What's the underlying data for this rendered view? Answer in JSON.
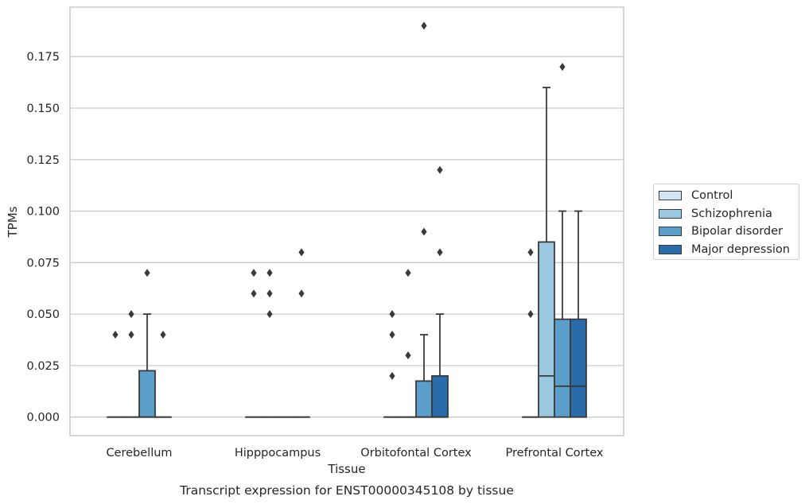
{
  "chart_data": {
    "type": "box",
    "title": "Transcript expression for ENST00000345108 by tissue",
    "xlabel": "Tissue",
    "ylabel": "TPMs",
    "ylim": [
      -0.009,
      0.199
    ],
    "yticks": [
      0.0,
      0.025,
      0.05,
      0.075,
      0.1,
      0.125,
      0.15,
      0.175
    ],
    "ytick_labels": [
      "0.000",
      "0.025",
      "0.050",
      "0.075",
      "0.100",
      "0.125",
      "0.150",
      "0.175"
    ],
    "grid": true,
    "legend_position": "right",
    "categories": [
      "Cerebellum",
      "Hipppocampus",
      "Orbitofontal Cortex",
      "Prefrontal Cortex"
    ],
    "series": [
      {
        "name": "Control",
        "color": "#d3e4f3",
        "boxes": [
          {
            "q1": 0,
            "median": 0,
            "q3": 0,
            "whislo": 0,
            "whishi": 0,
            "fliers": [
              0.04
            ]
          },
          {
            "q1": 0,
            "median": 0,
            "q3": 0,
            "whislo": 0,
            "whishi": 0,
            "fliers": [
              0.06,
              0.07
            ]
          },
          {
            "q1": 0,
            "median": 0,
            "q3": 0,
            "whislo": 0,
            "whishi": 0,
            "fliers": [
              0.02,
              0.04,
              0.05
            ]
          },
          {
            "q1": 0,
            "median": 0,
            "q3": 0,
            "whislo": 0,
            "whishi": 0,
            "fliers": [
              0.05,
              0.08
            ]
          }
        ]
      },
      {
        "name": "Schizophrenia",
        "color": "#9ac8e0",
        "boxes": [
          {
            "q1": 0,
            "median": 0,
            "q3": 0,
            "whislo": 0,
            "whishi": 0,
            "fliers": [
              0.04,
              0.05
            ]
          },
          {
            "q1": 0,
            "median": 0,
            "q3": 0,
            "whislo": 0,
            "whishi": 0,
            "fliers": [
              0.05,
              0.06,
              0.07
            ]
          },
          {
            "q1": 0,
            "median": 0,
            "q3": 0,
            "whislo": 0,
            "whishi": 0,
            "fliers": [
              0.03,
              0.07
            ]
          },
          {
            "q1": 0,
            "median": 0.02,
            "q3": 0.085,
            "whislo": 0,
            "whishi": 0.16,
            "fliers": []
          }
        ]
      },
      {
        "name": "Bipolar disorder",
        "color": "#5a9ec9",
        "boxes": [
          {
            "q1": 0,
            "median": 0,
            "q3": 0.0225,
            "whislo": 0,
            "whishi": 0.05,
            "fliers": [
              0.07
            ]
          },
          {
            "q1": 0,
            "median": 0,
            "q3": 0,
            "whislo": 0,
            "whishi": 0,
            "fliers": []
          },
          {
            "q1": 0,
            "median": 0,
            "q3": 0.0175,
            "whislo": 0,
            "whishi": 0.04,
            "fliers": [
              0.09,
              0.19
            ]
          },
          {
            "q1": 0,
            "median": 0.015,
            "q3": 0.0475,
            "whislo": 0,
            "whishi": 0.1,
            "fliers": [
              0.17
            ]
          }
        ]
      },
      {
        "name": "Major depression",
        "color": "#2a6ba9",
        "boxes": [
          {
            "q1": 0,
            "median": 0,
            "q3": 0,
            "whislo": 0,
            "whishi": 0,
            "fliers": [
              0.04
            ]
          },
          {
            "q1": 0,
            "median": 0,
            "q3": 0,
            "whislo": 0,
            "whishi": 0,
            "fliers": [
              0.06,
              0.08
            ]
          },
          {
            "q1": 0,
            "median": 0,
            "q3": 0.02,
            "whislo": 0,
            "whishi": 0.05,
            "fliers": [
              0.08,
              0.12
            ]
          },
          {
            "q1": 0,
            "median": 0.015,
            "q3": 0.0475,
            "whislo": 0,
            "whishi": 0.1,
            "fliers": []
          }
        ]
      }
    ]
  }
}
